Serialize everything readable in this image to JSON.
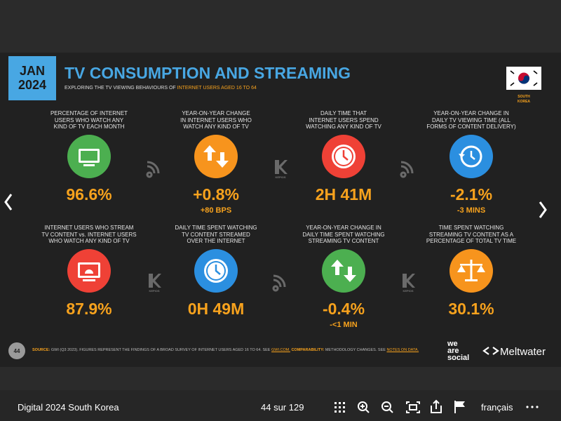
{
  "slide": {
    "date_box": {
      "month": "JAN",
      "year": "2024"
    },
    "title": "TV CONSUMPTION AND STREAMING",
    "subtitle_prefix": "EXPLORING THE TV VIEWING BEHAVIOURS OF",
    "subtitle_highlight": "INTERNET USERS AGED 16 TO 64",
    "country": [
      "SOUTH",
      "KOREA"
    ],
    "watermark": "KEPIOS",
    "stats": [
      {
        "label": [
          "PERCENTAGE OF INTERNET",
          "USERS WHO WATCH ANY",
          "KIND OF TV EACH MONTH"
        ],
        "value": "96.6%",
        "color": "#4caf50"
      },
      {
        "label": [
          "YEAR-ON-YEAR CHANGE",
          "IN INTERNET USERS WHO",
          "WATCH ANY KIND OF TV"
        ],
        "value": "+0.8%",
        "sub": "+80 BPS",
        "color": "#f7941d"
      },
      {
        "label": [
          "DAILY TIME THAT",
          "INTERNET USERS SPEND",
          "WATCHING ANY KIND OF TV"
        ],
        "value": "2H 41M",
        "color": "#ef4136"
      },
      {
        "label": [
          "YEAR-ON-YEAR CHANGE IN",
          "DAILY TV VIEWING TIME (ALL",
          "FORMS OF CONTENT DELIVERY)"
        ],
        "value": "-2.1%",
        "sub": "-3 MINS",
        "color": "#2b8fe0"
      },
      {
        "label": [
          "INTERNET USERS WHO STREAM",
          "TV CONTENT vs. INTERNET USERS",
          "WHO WATCH ANY KIND OF TV"
        ],
        "value": "87.9%",
        "color": "#ef4136"
      },
      {
        "label": [
          "DAILY TIME SPENT WATCHING",
          "TV CONTENT STREAMED",
          "OVER THE INTERNET"
        ],
        "value": "0H 49M",
        "color": "#2b8fe0"
      },
      {
        "label": [
          "YEAR-ON-YEAR CHANGE IN",
          "DAILY TIME SPENT WATCHING",
          "STREAMING TV CONTENT"
        ],
        "value": "-0.4%",
        "sub": "-<1 MIN",
        "color": "#4caf50"
      },
      {
        "label": [
          "TIME SPENT WATCHING",
          "STREAMING TV CONTENT AS A",
          "PERCENTAGE OF TOTAL TV TIME"
        ],
        "value": "30.1%",
        "color": "#f7941d"
      }
    ],
    "page_number": "44",
    "footer": {
      "source_label": "SOURCE:",
      "source_text": "GWI (Q3 2023). FIGURES REPRESENT THE FINDINGS OF A BROAD SURVEY OF INTERNET USERS AGED 16 TO 64. SEE",
      "source_link": "GWI.COM.",
      "comparability_label": "COMPARABILITY:",
      "comparability_text": "METHODOLOGY CHANGES. SEE",
      "notes_link": "NOTES ON DATA."
    },
    "logos": {
      "was": [
        "we",
        "are",
        "social"
      ],
      "meltwater": "Meltwater"
    }
  },
  "viewer": {
    "doc_title": "Digital 2024 South Korea",
    "page_counter": "44 sur 129",
    "language": "français"
  }
}
